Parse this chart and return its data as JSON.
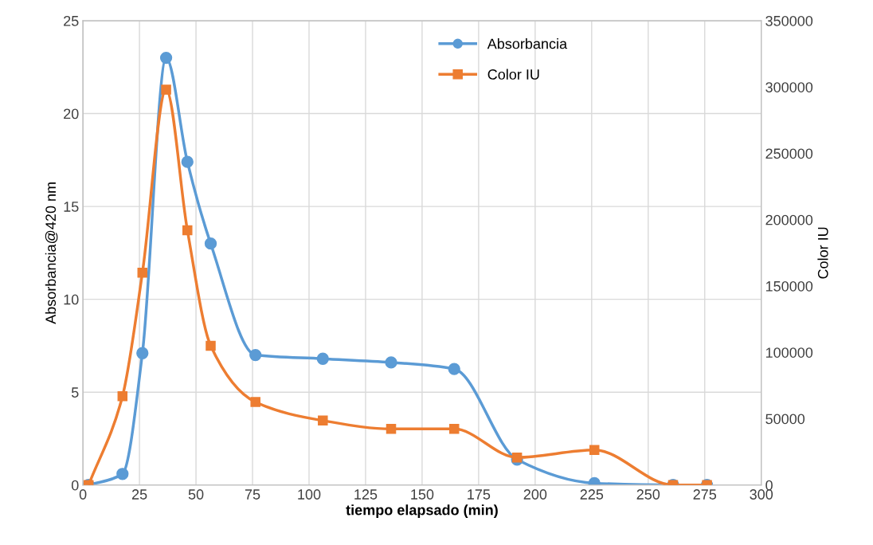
{
  "chart_data": {
    "type": "line",
    "xlabel": "tiempo elapsado (min)",
    "ylabel": "Absorbancia@420 nm",
    "y2label": "Color IU",
    "xlim": [
      0,
      300
    ],
    "xticks": [
      0,
      25,
      50,
      75,
      100,
      125,
      150,
      175,
      200,
      225,
      250,
      275,
      300
    ],
    "ylim": [
      0,
      25
    ],
    "yticks": [
      0,
      5,
      10,
      15,
      20,
      25
    ],
    "y2lim": [
      0,
      350000
    ],
    "y2ticks": [
      0,
      50000,
      100000,
      150000,
      200000,
      250000,
      300000,
      350000
    ],
    "grid": true,
    "legend": "top",
    "line_style": "solid",
    "series": [
      {
        "name": "Absorbancia",
        "color": "#5b9bd5",
        "marker": "circle",
        "x": [
          2.5,
          17.5,
          26.3,
          36.8,
          46.2,
          56.5,
          76.3,
          106.1,
          136.3,
          164.2,
          192,
          226.2,
          261,
          276
        ],
        "values": [
          0,
          0.6,
          7.1,
          23.0,
          17.4,
          13.0,
          7.0,
          6.8,
          6.6,
          6.25,
          1.37,
          0.1,
          0,
          0
        ]
      },
      {
        "name": "Color IU",
        "color": "#ed7d31",
        "marker": "square",
        "axis": "y2",
        "x": [
          2.5,
          17.5,
          26.3,
          36.8,
          46.2,
          56.5,
          76.3,
          106.1,
          136.3,
          164.2,
          192,
          226.2,
          261,
          276
        ],
        "values": [
          0,
          67000,
          160000,
          298000,
          192000,
          105000,
          62600,
          48600,
          42300,
          42300,
          20800,
          26400,
          0,
          0
        ]
      }
    ]
  }
}
